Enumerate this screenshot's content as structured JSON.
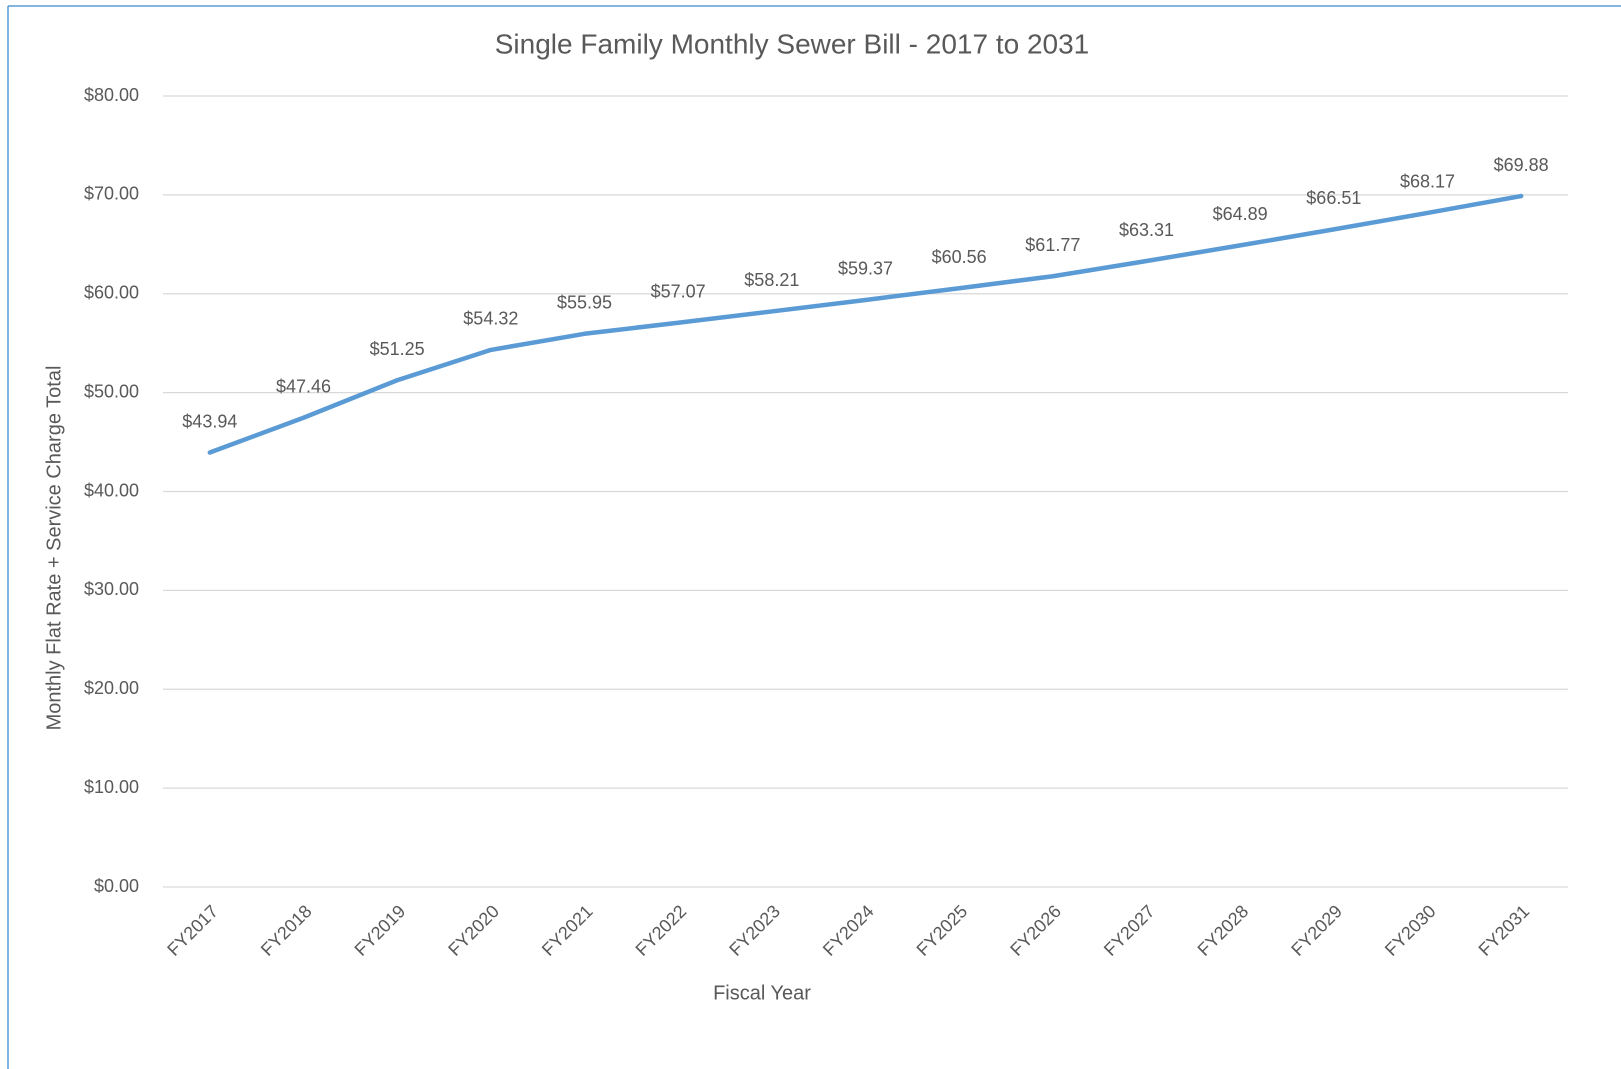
{
  "chart_data": {
    "type": "line",
    "title": "Single Family Monthly Sewer Bill - 2017 to 2031",
    "x_label": "Fiscal Year",
    "y_label": "Monthly Flat Rate + Service Charge Total",
    "categories": [
      "FY2017",
      "FY2018",
      "FY2019",
      "FY2020",
      "FY2021",
      "FY2022",
      "FY2023",
      "FY2024",
      "FY2025",
      "FY2026",
      "FY2027",
      "FY2028",
      "FY2029",
      "FY2030",
      "FY2031"
    ],
    "values": [
      43.94,
      47.46,
      51.25,
      54.32,
      55.95,
      57.07,
      58.21,
      59.37,
      60.56,
      61.77,
      63.31,
      64.89,
      66.51,
      68.17,
      69.88
    ],
    "value_labels": [
      "$43.94",
      "$47.46",
      "$51.25",
      "$54.32",
      "$55.95",
      "$57.07",
      "$58.21",
      "$59.37",
      "$60.56",
      "$61.77",
      "$63.31",
      "$64.89",
      "$66.51",
      "$68.17",
      "$69.88"
    ],
    "color": "#5b9bd5",
    "ylim": [
      0,
      80
    ],
    "yticks": [
      {
        "value": 0,
        "label": "$0.00"
      },
      {
        "value": 10,
        "label": "$10.00"
      },
      {
        "value": 20,
        "label": "$20.00"
      },
      {
        "value": 30,
        "label": "$30.00"
      },
      {
        "value": 40,
        "label": "$40.00"
      },
      {
        "value": 50,
        "label": "$50.00"
      },
      {
        "value": 60,
        "label": "$60.00"
      },
      {
        "value": 70,
        "label": "$70.00"
      },
      {
        "value": 80,
        "label": "$80.00"
      }
    ],
    "grid": true
  }
}
